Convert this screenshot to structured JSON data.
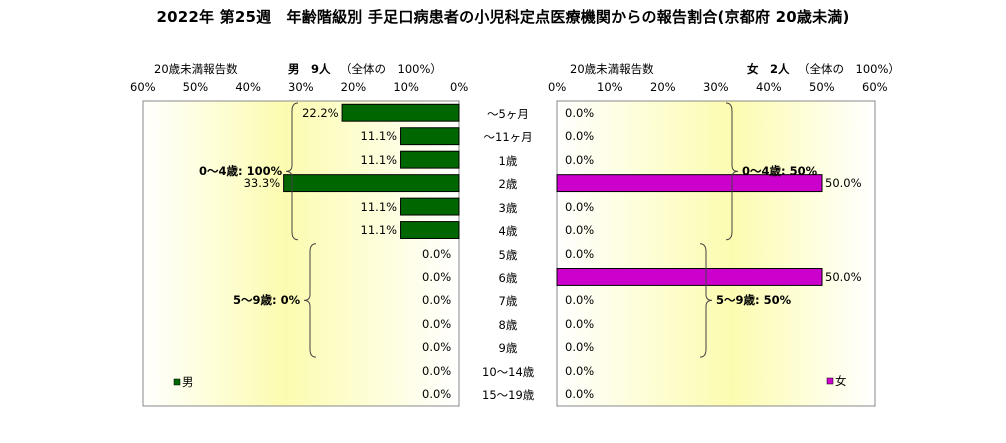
{
  "title": "2022年 第25週　年齢階級別 手足口病患者の小児科定点医療機関からの報告割合(京都府 20歳未満)",
  "chart_data": {
    "type": "bar",
    "orientation": "horizontal-butterfly",
    "categories": [
      "～5ヶ月",
      "～11ヶ月",
      "1歳",
      "2歳",
      "3歳",
      "4歳",
      "5歳",
      "6歳",
      "7歳",
      "8歳",
      "9歳",
      "10～14歳",
      "15～19歳"
    ],
    "xlim": [
      0,
      60
    ],
    "ticks": [
      "60%",
      "50%",
      "40%",
      "30%",
      "20%",
      "10%",
      "0%"
    ],
    "ticks_right": [
      "0%",
      "10%",
      "20%",
      "30%",
      "40%",
      "50%",
      "60%"
    ],
    "left_panel": {
      "header_label": "20歳未満報告数",
      "header_count": "男　9人",
      "header_total": "（全体の　100%）",
      "series": [
        {
          "name": "男",
          "color": "#006600",
          "values": [
            22.2,
            11.1,
            11.1,
            33.3,
            11.1,
            11.1,
            0.0,
            0.0,
            0.0,
            0.0,
            0.0,
            0.0,
            0.0
          ],
          "labels": [
            "22.2%",
            "11.1%",
            "11.1%",
            "33.3%",
            "11.1%",
            "11.1%",
            "0.0%",
            "0.0%",
            "0.0%",
            "0.0%",
            "0.0%",
            "0.0%",
            "0.0%"
          ]
        }
      ],
      "annotations": [
        {
          "text": "0～4歳: 100%",
          "from": 0,
          "to": 5
        },
        {
          "text": "5～9歳: 0%",
          "from": 6,
          "to": 10
        }
      ],
      "legend": "男"
    },
    "right_panel": {
      "header_label": "20歳未満報告数",
      "header_count": "女　2人",
      "header_total": "（全体の　100%）",
      "series": [
        {
          "name": "女",
          "color": "#cc00cc",
          "values": [
            0.0,
            0.0,
            0.0,
            50.0,
            0.0,
            0.0,
            0.0,
            50.0,
            0.0,
            0.0,
            0.0,
            0.0,
            0.0
          ],
          "labels": [
            "0.0%",
            "0.0%",
            "0.0%",
            "50.0%",
            "0.0%",
            "0.0%",
            "0.0%",
            "50.0%",
            "0.0%",
            "0.0%",
            "0.0%",
            "0.0%",
            "0.0%"
          ]
        }
      ],
      "annotations": [
        {
          "text": "0～4歳: 50%",
          "from": 0,
          "to": 5
        },
        {
          "text": "5～9歳: 50%",
          "from": 6,
          "to": 10
        }
      ],
      "legend": "女"
    }
  }
}
